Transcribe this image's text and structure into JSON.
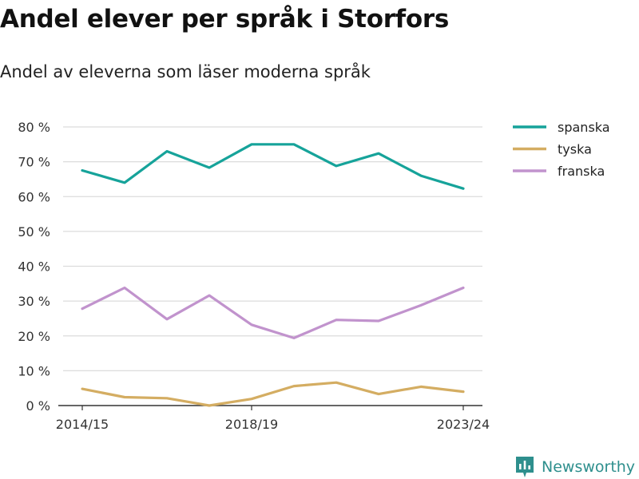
{
  "page": {
    "title": "Andel elever per språk i Storfors",
    "subtitle": "Andel av eleverna som läser moderna språk"
  },
  "brand": {
    "name": "Newsworthy",
    "icon": "newsworthy-logo-icon",
    "color": "#2e8f8d"
  },
  "chart_data": {
    "type": "line",
    "title": "Andel elever per språk i Storfors",
    "subtitle": "Andel av eleverna som läser moderna språk",
    "xlabel": "",
    "ylabel": "",
    "x_tick_labels": [
      "2014/15",
      "2018/19",
      "2023/24"
    ],
    "x_tick_indices": [
      0,
      4,
      9
    ],
    "x_count": 10,
    "y_tick_labels": [
      "0 %",
      "10 %",
      "20 %",
      "30 %",
      "40 %",
      "50 %",
      "60 %",
      "70 %",
      "80 %"
    ],
    "ylim": [
      0,
      80
    ],
    "grid": true,
    "legend_position": "top-right",
    "series": [
      {
        "name": "spanska",
        "color": "#16a39a",
        "values": [
          67.5,
          64,
          73,
          68.3,
          75,
          75,
          68.8,
          72.4,
          66,
          62.3
        ]
      },
      {
        "name": "tyska",
        "color": "#d4ad62",
        "values": [
          4.8,
          2.4,
          2.1,
          0,
          1.9,
          5.6,
          6.6,
          3.3,
          5.4,
          4
        ]
      },
      {
        "name": "franska",
        "color": "#c193cd",
        "values": [
          27.8,
          33.8,
          24.8,
          31.6,
          23.2,
          19.4,
          24.6,
          24.3,
          28.8,
          33.8
        ]
      }
    ]
  }
}
